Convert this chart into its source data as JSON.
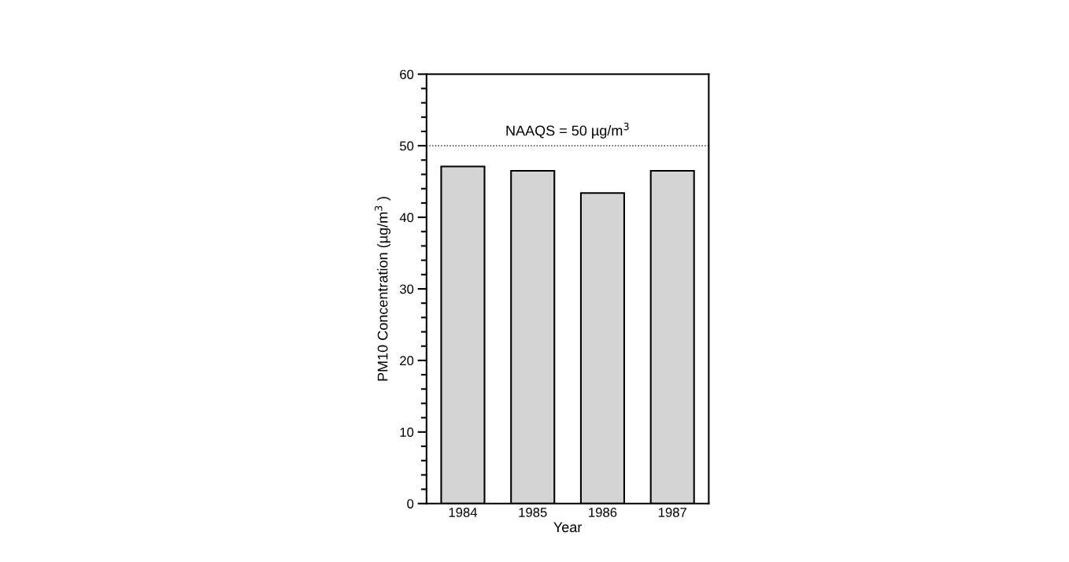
{
  "chart_data": {
    "type": "bar",
    "xlabel": "Year",
    "ylabel": "PM10 Concentration (µg/m$^{3}$ )",
    "categories": [
      "1984",
      "1985",
      "1986",
      "1987"
    ],
    "values": [
      47.1,
      46.5,
      43.4,
      46.5
    ],
    "color": "#d4d4d4",
    "ylim": [
      0,
      60
    ],
    "yticks": [
      0,
      10,
      20,
      30,
      40,
      50,
      60
    ],
    "ref_lines": [
      {
        "axis": "y",
        "value": 50,
        "label": "NAAQS = 50 µg/m$^{3}$",
        "color": "#000000",
        "line_style": "dotted"
      }
    ],
    "grid": false,
    "legend": false
  }
}
